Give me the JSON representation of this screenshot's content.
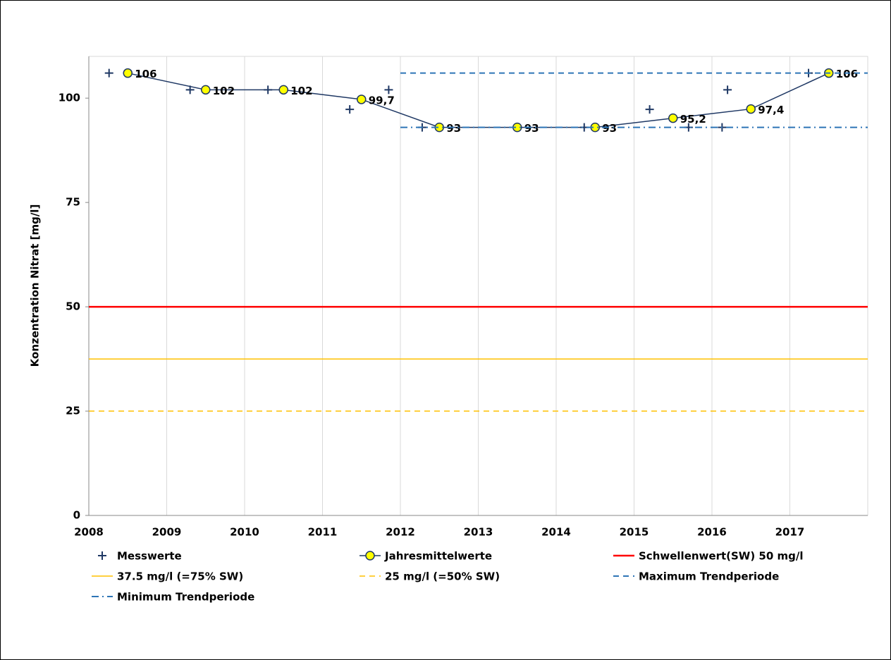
{
  "chart_data": {
    "type": "line",
    "ylabel": "Konzentration Nitrat [mg/l]",
    "xlim": [
      2008,
      2018
    ],
    "xticks": [
      2008,
      2009,
      2010,
      2011,
      2012,
      2013,
      2014,
      2015,
      2016,
      2017
    ],
    "ylim": [
      0,
      110
    ],
    "yticks": [
      0,
      25,
      50,
      75,
      100
    ],
    "grid": "x",
    "legend": "bottom",
    "series": [
      {
        "name": "Messwerte",
        "color": "#1f3864",
        "marker": "plus",
        "line": false,
        "x": [
          2008.26,
          2009.3,
          2010.3,
          2011.35,
          2011.85,
          2012.28,
          2014.36,
          2015.2,
          2015.7,
          2016.13,
          2016.2,
          2017.24
        ],
        "values": [
          106,
          102,
          102,
          97.3,
          102,
          93,
          93,
          97.3,
          93,
          93,
          102,
          106
        ]
      },
      {
        "name": "Jahresmittelwerte",
        "color": "#1f3864",
        "marker": "circle",
        "marker_color": "#ffff00",
        "line": true,
        "style": "solid",
        "x": [
          2008.5,
          2009.5,
          2010.5,
          2011.5,
          2012.5,
          2013.5,
          2014.5,
          2015.5,
          2016.5,
          2017.5
        ],
        "values": [
          106,
          102,
          102,
          99.7,
          93,
          93,
          93,
          95.2,
          97.4,
          106
        ],
        "value_labels": [
          "106",
          "102",
          "102",
          "99,7",
          "93",
          "93",
          "93",
          "95,2",
          "97,4",
          "106"
        ]
      },
      {
        "name": "Schwellenwert(SW) 50 mg/l",
        "color": "#ff0000",
        "line": true,
        "style": "solid",
        "width": 2.5,
        "x": [
          2008,
          2018
        ],
        "values": [
          50,
          50
        ]
      },
      {
        "name": "37.5 mg/l (=75% SW)",
        "color": "#ffc000",
        "line": true,
        "style": "solid",
        "width": 1.5,
        "x": [
          2008,
          2018
        ],
        "values": [
          37.5,
          37.5
        ]
      },
      {
        "name": "25 mg/l (=50% SW)",
        "color": "#ffc000",
        "line": true,
        "style": "dash",
        "width": 1.5,
        "x": [
          2008,
          2018
        ],
        "values": [
          25,
          25
        ]
      },
      {
        "name": "Maximum Trendperiode",
        "color": "#2e75b6",
        "line": true,
        "style": "dash",
        "width": 2,
        "x": [
          2012,
          2018
        ],
        "values": [
          106,
          106
        ]
      },
      {
        "name": "Minimum Trendperiode",
        "color": "#2e75b6",
        "line": true,
        "style": "dashdot",
        "width": 2,
        "x": [
          2012,
          2018
        ],
        "values": [
          93,
          93
        ]
      }
    ]
  }
}
